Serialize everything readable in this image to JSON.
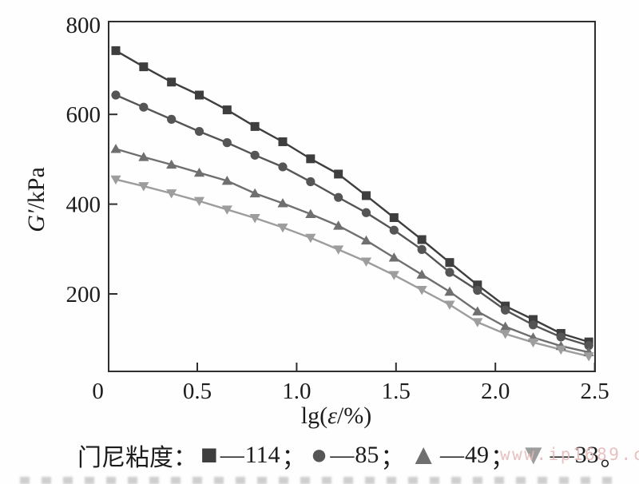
{
  "axes": {
    "y_label_symbol": "G′",
    "y_label_unit": "/kPa",
    "x_label_pre": "lg(",
    "x_label_symbol": "ε",
    "x_label_post": "/%)",
    "x_tick_labels": [
      "0",
      "0.5",
      "1.0",
      "1.5",
      "2.0",
      "2.5"
    ],
    "y_tick_labels": [
      "200",
      "400",
      "600",
      "800"
    ]
  },
  "legend": {
    "title": "门尼粘度：",
    "dash": "—",
    "items": [
      {
        "marker": "square",
        "label": "114",
        "suffix": "；"
      },
      {
        "marker": "circle",
        "label": "85",
        "suffix": "；"
      },
      {
        "marker": "triangle-up",
        "label": "49",
        "suffix": "；"
      },
      {
        "marker": "triangle-down",
        "label": "33",
        "suffix": "。"
      }
    ]
  },
  "watermark": {
    "text": "www.ip1689.com"
  },
  "colors": {
    "axis": "#2e2e2e",
    "text": "#1c1c1c",
    "watermark": "#e5b9b9"
  },
  "chart_data": {
    "type": "line",
    "title": "",
    "xlabel": "lg(ε/%)",
    "ylabel": "G′/kPa",
    "xlim": [
      0,
      2.5
    ],
    "ylim": [
      27,
      800
    ],
    "x_ticks": [
      0,
      0.5,
      1.0,
      1.5,
      2.0,
      2.5
    ],
    "y_ticks": [
      200,
      400,
      600,
      800
    ],
    "grid": false,
    "legend_position": "bottom",
    "legend_title": "门尼粘度",
    "x": [
      0.09,
      0.23,
      0.37,
      0.51,
      0.65,
      0.79,
      0.93,
      1.07,
      1.21,
      1.35,
      1.49,
      1.63,
      1.77,
      1.91,
      2.05,
      2.19,
      2.33,
      2.47
    ],
    "series": [
      {
        "name": "114",
        "marker": "square",
        "color": "#3e3e3e",
        "values": [
          742,
          706,
          672,
          643,
          610,
          573,
          539,
          501,
          467,
          419,
          370,
          321,
          270,
          220,
          173,
          143,
          112,
          93
        ]
      },
      {
        "name": "85",
        "marker": "circle",
        "color": "#555555",
        "values": [
          643,
          616,
          589,
          562,
          537,
          509,
          483,
          450,
          415,
          381,
          342,
          299,
          248,
          208,
          164,
          131,
          104,
          85
        ]
      },
      {
        "name": "49",
        "marker": "triangle-up",
        "color": "#6f6f6f",
        "values": [
          523,
          505,
          488,
          470,
          452,
          424,
          402,
          378,
          352,
          319,
          281,
          243,
          205,
          161,
          127,
          103,
          84,
          70
        ]
      },
      {
        "name": "33",
        "marker": "triangle-down",
        "color": "#9d9d9d",
        "values": [
          455,
          440,
          424,
          407,
          388,
          369,
          348,
          325,
          299,
          272,
          242,
          209,
          176,
          137,
          111,
          92,
          76,
          61
        ]
      }
    ]
  }
}
